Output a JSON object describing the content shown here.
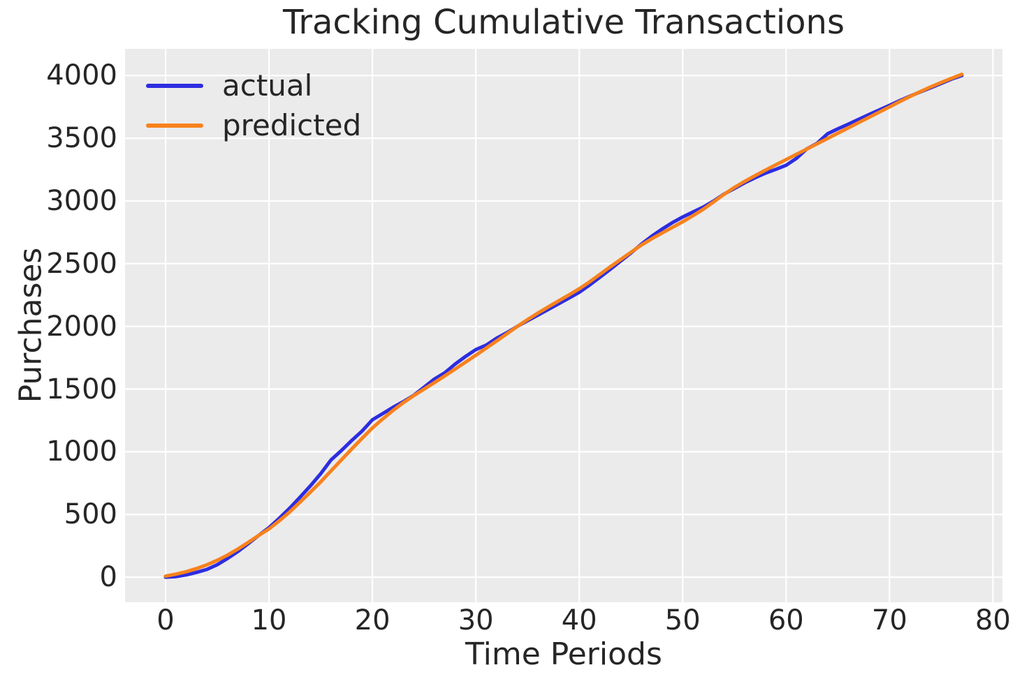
{
  "figure": {
    "title": "Tracking Cumulative Transactions",
    "x_axis_label": "Time Periods",
    "y_axis_label": "Purchases"
  },
  "legend": {
    "items": [
      {
        "label": "actual",
        "color": "#2d2de1"
      },
      {
        "label": "predicted",
        "color": "#f8821d"
      }
    ]
  },
  "chart_data": {
    "type": "line",
    "title": "Tracking Cumulative Transactions",
    "xlabel": "Time Periods",
    "ylabel": "Purchases",
    "x_ticks": [
      0,
      10,
      20,
      30,
      40,
      50,
      60,
      70,
      80
    ],
    "y_ticks": [
      0,
      500,
      1000,
      1500,
      2000,
      2500,
      3000,
      3500,
      4000
    ],
    "xlim": [
      -3.92,
      80.92
    ],
    "ylim": [
      -200,
      4213
    ],
    "grid": true,
    "grid_color": "#ffffff",
    "background": "#ebebeb",
    "legend_position": "upper left",
    "line_width": 5,
    "x": [
      0,
      1,
      2,
      3,
      4,
      5,
      6,
      7,
      8,
      9,
      10,
      11,
      12,
      13,
      14,
      15,
      16,
      17,
      18,
      19,
      20,
      21,
      22,
      23,
      24,
      25,
      26,
      27,
      28,
      29,
      30,
      31,
      32,
      33,
      34,
      35,
      36,
      37,
      38,
      39,
      40,
      41,
      42,
      43,
      44,
      45,
      46,
      47,
      48,
      49,
      50,
      51,
      52,
      53,
      54,
      55,
      56,
      57,
      58,
      59,
      60,
      61,
      62,
      63,
      64,
      65,
      66,
      67,
      68,
      69,
      70,
      71,
      72,
      73,
      74,
      75,
      76,
      77
    ],
    "series": [
      {
        "name": "actual",
        "color": "#2d2de1",
        "values": [
          0,
          5,
          18,
          38,
          62,
          100,
          150,
          205,
          268,
          333,
          395,
          470,
          550,
          638,
          728,
          825,
          935,
          1010,
          1090,
          1165,
          1255,
          1305,
          1355,
          1400,
          1450,
          1515,
          1580,
          1630,
          1700,
          1760,
          1815,
          1850,
          1905,
          1950,
          2000,
          2045,
          2090,
          2135,
          2180,
          2225,
          2272,
          2330,
          2392,
          2455,
          2520,
          2585,
          2655,
          2718,
          2775,
          2827,
          2872,
          2912,
          2952,
          3000,
          3055,
          3100,
          3145,
          3185,
          3222,
          3252,
          3285,
          3340,
          3415,
          3460,
          3535,
          3575,
          3612,
          3650,
          3688,
          3725,
          3762,
          3800,
          3836,
          3870,
          3903,
          3937,
          3972,
          4000
        ]
      },
      {
        "name": "predicted",
        "color": "#f8821d",
        "values": [
          8,
          24,
          44,
          69,
          99,
          135,
          177,
          225,
          278,
          333,
          385,
          450,
          520,
          598,
          678,
          760,
          848,
          935,
          1022,
          1107,
          1190,
          1262,
          1330,
          1392,
          1448,
          1500,
          1552,
          1605,
          1660,
          1715,
          1770,
          1827,
          1883,
          1941,
          1999,
          2054,
          2106,
          2155,
          2203,
          2251,
          2300,
          2355,
          2415,
          2475,
          2533,
          2591,
          2648,
          2698,
          2744,
          2789,
          2834,
          2883,
          2935,
          2993,
          3053,
          3108,
          3156,
          3202,
          3246,
          3288,
          3330,
          3372,
          3414,
          3456,
          3498,
          3540,
          3582,
          3624,
          3666,
          3708,
          3750,
          3793,
          3834,
          3873,
          3910,
          3945,
          3978,
          4010
        ]
      }
    ]
  }
}
